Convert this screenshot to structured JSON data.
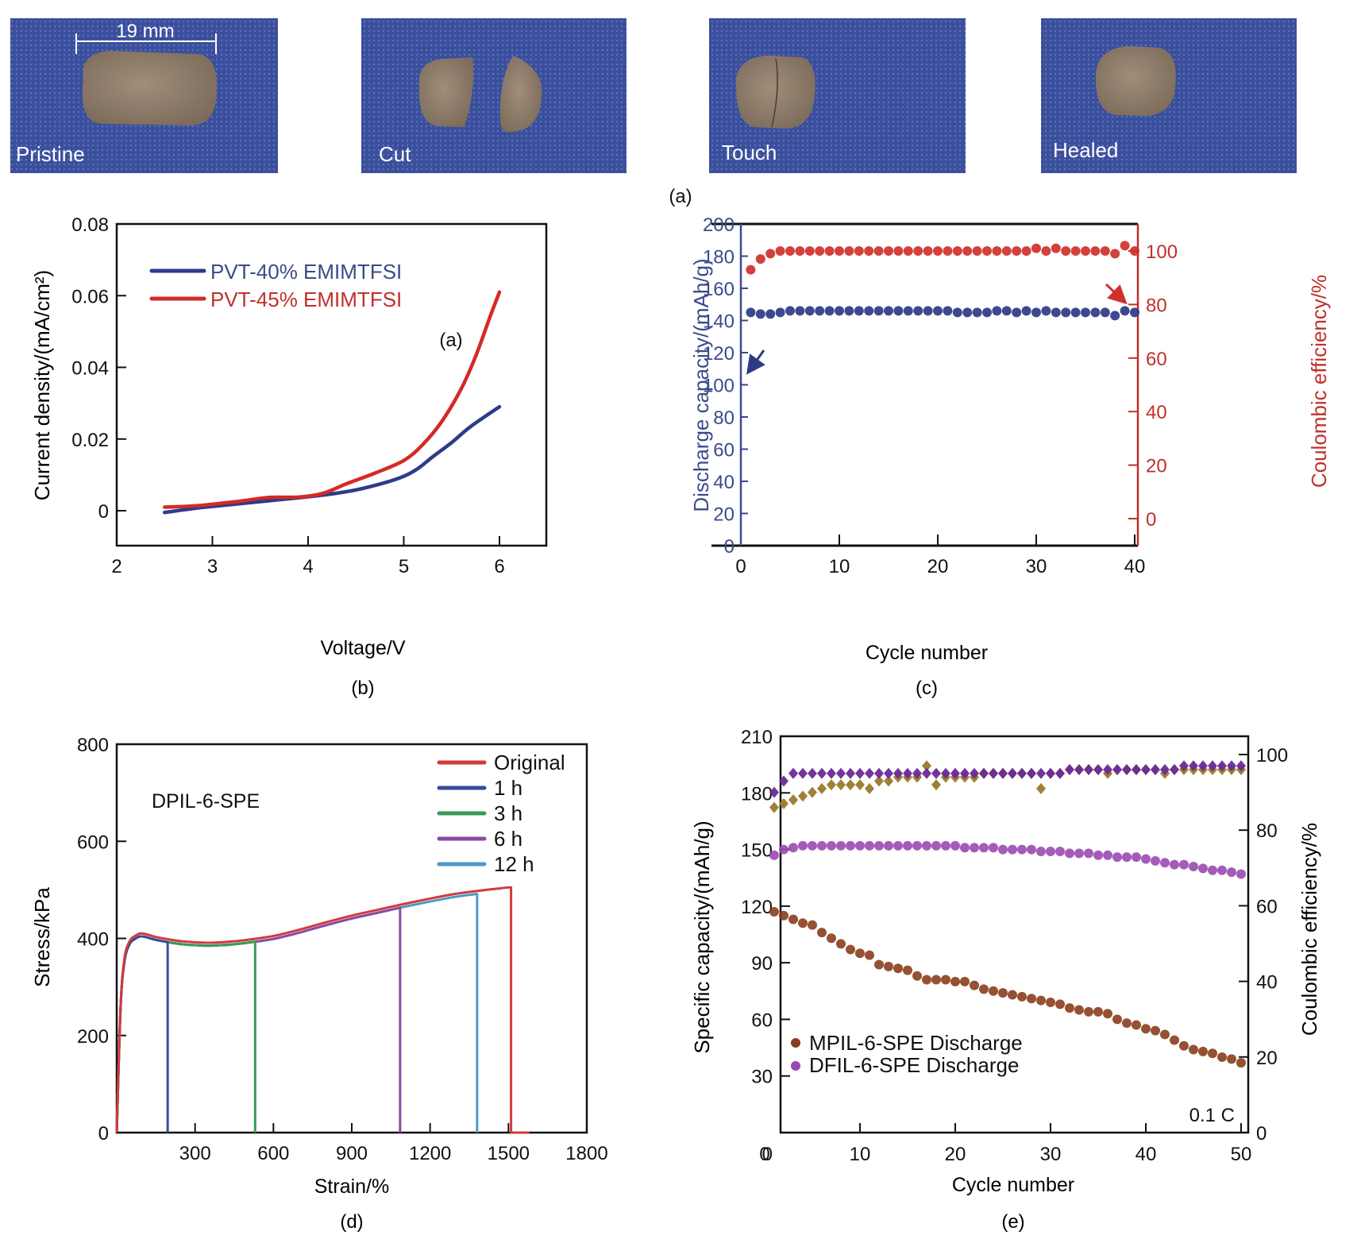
{
  "figure": {
    "panel_a": {
      "caption": "(a)",
      "photos": [
        {
          "label": "Pristine",
          "scale_bar": "19 mm"
        },
        {
          "label": "Cut"
        },
        {
          "label": "Touch"
        },
        {
          "label": "Healed"
        }
      ],
      "colors": {
        "background": "#3a4f9a",
        "sample": "#8c7a68",
        "label": "#ffffff"
      }
    }
  },
  "chart_data": [
    {
      "id": "b",
      "caption": "(b)",
      "type": "line",
      "title": "",
      "inset_label": "(a)",
      "xlabel": "Voltage/V",
      "ylabel": "Current density/(mA/cm²)",
      "xlim": [
        2,
        6.5
      ],
      "ylim": [
        -0.01,
        0.08
      ],
      "xticks": [
        2,
        3,
        4,
        5,
        6
      ],
      "xtick_labels": [
        "2",
        "3",
        "4",
        "5",
        "6"
      ],
      "yticks": [
        0,
        0.02,
        0.04,
        0.06,
        0.08
      ],
      "ytick_labels": [
        "0",
        "0.02",
        "0.04",
        "0.06",
        "0.08"
      ],
      "grid": false,
      "legend": "top-left",
      "series": [
        {
          "name": "PVT-40% EMIMTFSI",
          "color": "#2e3a8c",
          "x": [
            2.5,
            2.8,
            3.0,
            3.3,
            3.6,
            3.9,
            4.2,
            4.5,
            4.8,
            5.0,
            5.15,
            5.3,
            5.5,
            5.7,
            6.0
          ],
          "y": [
            -0.0005,
            0.0006,
            0.0012,
            0.002,
            0.0028,
            0.0036,
            0.0045,
            0.0058,
            0.0078,
            0.0096,
            0.0118,
            0.015,
            0.019,
            0.0235,
            0.029
          ]
        },
        {
          "name": "PVT-45% EMIMTFSI",
          "color": "#d42a25",
          "x": [
            2.5,
            2.8,
            3.0,
            3.3,
            3.6,
            3.9,
            4.15,
            4.4,
            4.7,
            5.0,
            5.2,
            5.4,
            5.6,
            5.75,
            5.9,
            6.0
          ],
          "y": [
            0.001,
            0.0013,
            0.0018,
            0.0027,
            0.0037,
            0.0038,
            0.0048,
            0.0075,
            0.0105,
            0.014,
            0.0185,
            0.025,
            0.034,
            0.043,
            0.054,
            0.061
          ]
        }
      ]
    },
    {
      "id": "c",
      "caption": "(c)",
      "type": "scatter",
      "title": "",
      "xlabel": "Cycle number",
      "ylabel": "Discharge capacity/(mAh/g)",
      "ylabel_right": "Coulombic efficiency/%",
      "xlim": [
        0,
        40
      ],
      "ylim": [
        0,
        200
      ],
      "ylim_right": [
        -10,
        110
      ],
      "xticks": [
        0,
        10,
        20,
        30,
        40
      ],
      "xtick_labels": [
        "0",
        "10",
        "20",
        "30",
        "40"
      ],
      "yticks": [
        0,
        20,
        40,
        60,
        80,
        100,
        120,
        140,
        160,
        180,
        200
      ],
      "ytick_labels": [
        "0",
        "20",
        "40",
        "60",
        "80",
        "100",
        "120",
        "140",
        "160",
        "180",
        "200"
      ],
      "yticks_right": [
        0,
        20,
        40,
        60,
        80,
        100
      ],
      "ytick_labels_right": [
        "0",
        "20",
        "40",
        "60",
        "80",
        "100"
      ],
      "grid": false,
      "axis_colors": {
        "left": "#3b4a8a",
        "right": "#c0302a"
      },
      "annotations": [
        {
          "type": "arrow",
          "points_to": "left-axis",
          "series": "Discharge capacity"
        },
        {
          "type": "arrow",
          "points_to": "right-axis",
          "series": "Coulombic efficiency"
        }
      ],
      "series": [
        {
          "name": "Discharge capacity",
          "axis": "left",
          "color": "#2d3a86",
          "x": [
            1,
            2,
            3,
            4,
            5,
            6,
            7,
            8,
            9,
            10,
            11,
            12,
            13,
            14,
            15,
            16,
            17,
            18,
            19,
            20,
            21,
            22,
            23,
            24,
            25,
            26,
            27,
            28,
            29,
            30,
            31,
            32,
            33,
            34,
            35,
            36,
            37,
            38,
            39,
            40
          ],
          "y": [
            145,
            144,
            144,
            145,
            146,
            146,
            146,
            146,
            146,
            146,
            146,
            146,
            146,
            146,
            146,
            146,
            146,
            146,
            146,
            146,
            146,
            145,
            145,
            145,
            145,
            146,
            146,
            145,
            146,
            145,
            146,
            145,
            145,
            145,
            145,
            145,
            145,
            143,
            146,
            145
          ]
        },
        {
          "name": "Coulombic efficiency",
          "axis": "right",
          "color": "#d0302a",
          "x": [
            1,
            2,
            3,
            4,
            5,
            6,
            7,
            8,
            9,
            10,
            11,
            12,
            13,
            14,
            15,
            16,
            17,
            18,
            19,
            20,
            21,
            22,
            23,
            24,
            25,
            26,
            27,
            28,
            29,
            30,
            31,
            32,
            33,
            34,
            35,
            36,
            37,
            38,
            39,
            40
          ],
          "y": [
            93,
            97,
            99,
            100,
            100,
            100,
            100,
            100,
            100,
            100,
            100,
            100,
            100,
            100,
            100,
            100,
            100,
            100,
            100,
            100,
            100,
            100,
            100,
            100,
            100,
            100,
            100,
            100,
            100,
            101,
            100,
            101,
            100,
            100,
            100,
            100,
            100,
            99,
            102,
            100
          ]
        }
      ]
    },
    {
      "id": "d",
      "caption": "(d)",
      "type": "line",
      "title": "",
      "inset_label": "DPIL-6-SPE",
      "xlabel": "Strain/%",
      "ylabel": "Stress/kPa",
      "xlim": [
        0,
        1800
      ],
      "ylim": [
        0,
        800
      ],
      "xticks": [
        300,
        600,
        900,
        1200,
        1500,
        1800
      ],
      "xtick_labels": [
        "300",
        "600",
        "900",
        "1200",
        "1500",
        "1800"
      ],
      "yticks": [
        0,
        200,
        400,
        600,
        800
      ],
      "ytick_labels": [
        "0",
        "200",
        "400",
        "600",
        "800"
      ],
      "grid": false,
      "legend": "top-right",
      "series": [
        {
          "name": "Original",
          "color": "#d23a3a",
          "break_strain": 1510,
          "max_stress": 505
        },
        {
          "name": "1 h",
          "color": "#3a4a9a",
          "break_strain": 195,
          "max_stress": 410
        },
        {
          "name": "3 h",
          "color": "#3a9a5a",
          "break_strain": 530,
          "max_stress": 410
        },
        {
          "name": "6 h",
          "color": "#8a4aa6",
          "break_strain": 1085,
          "max_stress": 470
        },
        {
          "name": "12 h",
          "color": "#4a9ac8",
          "break_strain": 1380,
          "max_stress": 488
        }
      ],
      "base_curve": {
        "x": [
          0,
          15,
          30,
          50,
          70,
          90,
          110,
          150,
          200,
          250,
          300,
          350,
          400,
          450,
          500,
          600,
          700,
          800,
          900,
          1000,
          1100,
          1200,
          1300,
          1400,
          1450,
          1500
        ],
        "y": [
          0,
          260,
          360,
          395,
          405,
          410,
          409,
          403,
          398,
          394,
          392,
          391,
          392,
          394,
          397,
          405,
          418,
          433,
          447,
          459,
          471,
          482,
          492,
          499,
          502,
          505
        ]
      }
    },
    {
      "id": "e",
      "caption": "(e)",
      "type": "scatter",
      "title": "",
      "inset_label": "0.1 C",
      "xlabel": "Cycle number",
      "ylabel": "Specific capacity/(mAh/g)",
      "ylabel_right": "Coulombic efficiency/%",
      "xlim": [
        0,
        50
      ],
      "ylim": [
        0,
        210
      ],
      "ylim_right": [
        0,
        105
      ],
      "xticks": [
        0,
        10,
        20,
        30,
        40,
        50
      ],
      "xtick_labels": [
        "0",
        "10",
        "20",
        "30",
        "40",
        "50"
      ],
      "yticks": [
        30,
        60,
        90,
        120,
        150,
        180,
        210
      ],
      "ytick_labels": [
        "30",
        "60",
        "90",
        "120",
        "150",
        "180",
        "210"
      ],
      "y0_label": "0",
      "yticks_right": [
        0,
        20,
        40,
        60,
        80,
        100
      ],
      "ytick_labels_right": [
        "0",
        "20",
        "40",
        "60",
        "80",
        "100"
      ],
      "grid": false,
      "legend": "bottom-left",
      "series": [
        {
          "name": "MPIL-6-SPE Discharge",
          "axis": "left",
          "color": "#8a3e1c",
          "marker": "circle",
          "x": [
            1,
            2,
            3,
            4,
            5,
            6,
            7,
            8,
            9,
            10,
            11,
            12,
            13,
            14,
            15,
            16,
            17,
            18,
            19,
            20,
            21,
            22,
            23,
            24,
            25,
            26,
            27,
            28,
            29,
            30,
            31,
            32,
            33,
            34,
            35,
            36,
            37,
            38,
            39,
            40,
            41,
            42,
            43,
            44,
            45,
            46,
            47,
            48,
            49,
            50
          ],
          "y": [
            117,
            115,
            113,
            111,
            110,
            106,
            103,
            100,
            97,
            95,
            94,
            89,
            88,
            87,
            86,
            83,
            81,
            81,
            81,
            80,
            80,
            78,
            76,
            75,
            74,
            73,
            72,
            71,
            70,
            69,
            68,
            66,
            65,
            64,
            64,
            63,
            60,
            58,
            57,
            55,
            54,
            52,
            49,
            46,
            44,
            43,
            42,
            40,
            39,
            37
          ]
        },
        {
          "name": "DFIL-6-SPE Discharge",
          "axis": "left",
          "color": "#9a4ab0",
          "marker": "circle",
          "x": [
            1,
            2,
            3,
            4,
            5,
            6,
            7,
            8,
            9,
            10,
            11,
            12,
            13,
            14,
            15,
            16,
            17,
            18,
            19,
            20,
            21,
            22,
            23,
            24,
            25,
            26,
            27,
            28,
            29,
            30,
            31,
            32,
            33,
            34,
            35,
            36,
            37,
            38,
            39,
            40,
            41,
            42,
            43,
            44,
            45,
            46,
            47,
            48,
            49,
            50
          ],
          "y": [
            147,
            150,
            151,
            152,
            152,
            152,
            152,
            152,
            152,
            152,
            152,
            152,
            152,
            152,
            152,
            152,
            152,
            152,
            152,
            152,
            151,
            151,
            151,
            151,
            150,
            150,
            150,
            150,
            149,
            149,
            149,
            148,
            148,
            148,
            147,
            147,
            146,
            146,
            146,
            145,
            144,
            143,
            142,
            142,
            141,
            140,
            139,
            139,
            138,
            137
          ]
        },
        {
          "name": "MPIL-6-SPE Coulombic efficiency",
          "axis": "right",
          "color": "#9a7a2a",
          "marker": "diamond",
          "x": [
            1,
            2,
            3,
            4,
            5,
            6,
            7,
            8,
            9,
            10,
            11,
            12,
            13,
            14,
            15,
            16,
            17,
            18,
            19,
            20,
            21,
            22,
            23,
            24,
            25,
            26,
            27,
            28,
            29,
            30,
            31,
            32,
            33,
            34,
            35,
            36,
            37,
            38,
            39,
            40,
            41,
            42,
            43,
            44,
            45,
            46,
            47,
            48,
            49,
            50
          ],
          "y": [
            86,
            87,
            88,
            89,
            90,
            91,
            92,
            92,
            92,
            92,
            91,
            93,
            93,
            94,
            94,
            94,
            97,
            92,
            94,
            94,
            94,
            94,
            95,
            95,
            95,
            95,
            95,
            95,
            91,
            95,
            95,
            96,
            96,
            96,
            96,
            95,
            96,
            96,
            96,
            96,
            96,
            95,
            96,
            96,
            96,
            96,
            96,
            96,
            96,
            96
          ]
        },
        {
          "name": "DFIL-6-SPE Coulombic efficiency",
          "axis": "right",
          "color": "#6a2a96",
          "marker": "diamond",
          "x": [
            1,
            2,
            3,
            4,
            5,
            6,
            7,
            8,
            9,
            10,
            11,
            12,
            13,
            14,
            15,
            16,
            17,
            18,
            19,
            20,
            21,
            22,
            23,
            24,
            25,
            26,
            27,
            28,
            29,
            30,
            31,
            32,
            33,
            34,
            35,
            36,
            37,
            38,
            39,
            40,
            41,
            42,
            43,
            44,
            45,
            46,
            47,
            48,
            49,
            50
          ],
          "y": [
            90,
            93,
            95,
            95,
            95,
            95,
            95,
            95,
            95,
            95,
            95,
            95,
            95,
            95,
            95,
            95,
            95,
            95,
            95,
            95,
            95,
            95,
            95,
            95,
            95,
            95,
            95,
            95,
            95,
            95,
            95,
            96,
            96,
            96,
            96,
            96,
            96,
            96,
            96,
            96,
            96,
            96,
            96,
            97,
            97,
            97,
            97,
            97,
            97,
            97
          ]
        }
      ]
    }
  ]
}
